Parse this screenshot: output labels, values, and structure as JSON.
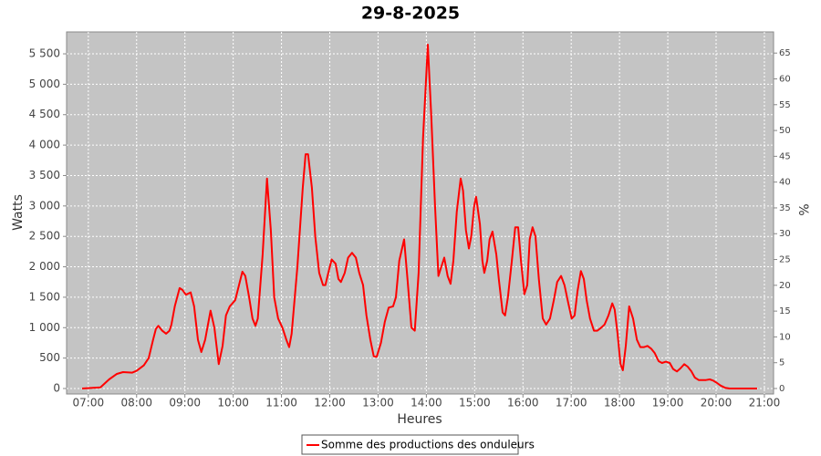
{
  "chart_data": {
    "type": "line",
    "title": "29-8-2025",
    "x_label": "Heures",
    "y_label": "Watts",
    "y2_label": "%",
    "xlim": [
      6.55,
      21.19
    ],
    "xticks": [
      {
        "value": 7,
        "label": "07:00"
      },
      {
        "value": 8,
        "label": "08:00"
      },
      {
        "value": 9,
        "label": "09:00"
      },
      {
        "value": 10,
        "label": "10:00"
      },
      {
        "value": 11,
        "label": "11:00"
      },
      {
        "value": 12,
        "label": "12:00"
      },
      {
        "value": 13,
        "label": "13:00"
      },
      {
        "value": 14,
        "label": "14:00"
      },
      {
        "value": 15,
        "label": "15:00"
      },
      {
        "value": 16,
        "label": "16:00"
      },
      {
        "value": 17,
        "label": "17:00"
      },
      {
        "value": 18,
        "label": "18:00"
      },
      {
        "value": 19,
        "label": "19:00"
      },
      {
        "value": 20,
        "label": "20:00"
      },
      {
        "value": 21,
        "label": "21:00"
      }
    ],
    "ylim": [
      -90,
      5860
    ],
    "yticks": [
      0,
      500,
      {
        "value": 1000,
        "label": "1 000"
      },
      {
        "value": 1500,
        "label": "1 500"
      },
      {
        "value": 2000,
        "label": "2 000"
      },
      {
        "value": 2500,
        "label": "2 500"
      },
      {
        "value": 3000,
        "label": "3 000"
      },
      {
        "value": 3500,
        "label": "3 500"
      },
      {
        "value": 4000,
        "label": "4 000"
      },
      {
        "value": 4500,
        "label": "4 500"
      },
      {
        "value": 5000,
        "label": "5 000"
      },
      {
        "value": 5500,
        "label": "5 500"
      }
    ],
    "y2lim": [
      -1.06,
      69.1
    ],
    "y2ticks": [
      0,
      5,
      10,
      15,
      20,
      25,
      30,
      35,
      40,
      45,
      50,
      55,
      60,
      65
    ],
    "grid": true,
    "legend": "bottom",
    "x": [
      6.87,
      7.25,
      7.43,
      7.59,
      7.72,
      7.91,
      8.0,
      8.15,
      8.25,
      8.34,
      8.4,
      8.45,
      8.53,
      8.61,
      8.68,
      8.72,
      8.79,
      8.89,
      8.95,
      9.02,
      9.12,
      9.19,
      9.27,
      9.34,
      9.42,
      9.53,
      9.61,
      9.7,
      9.78,
      9.85,
      9.93,
      10.04,
      10.12,
      10.19,
      10.25,
      10.33,
      10.4,
      10.46,
      10.51,
      10.61,
      10.7,
      10.78,
      10.85,
      10.93,
      11.02,
      11.1,
      11.16,
      11.21,
      11.33,
      11.44,
      11.5,
      11.55,
      11.63,
      11.7,
      11.78,
      11.86,
      11.91,
      11.97,
      12.04,
      12.12,
      12.18,
      12.23,
      12.31,
      12.38,
      12.46,
      12.54,
      12.61,
      12.69,
      12.76,
      12.84,
      12.91,
      12.97,
      13.06,
      13.14,
      13.22,
      13.31,
      13.37,
      13.44,
      13.54,
      13.61,
      13.69,
      13.76,
      13.84,
      13.93,
      14.03,
      14.1,
      14.18,
      14.25,
      14.31,
      14.37,
      14.44,
      14.5,
      14.56,
      14.63,
      14.71,
      14.76,
      14.82,
      14.88,
      14.93,
      14.99,
      15.03,
      15.11,
      15.16,
      15.2,
      15.26,
      15.31,
      15.37,
      15.45,
      15.5,
      15.58,
      15.63,
      15.69,
      15.77,
      15.84,
      15.9,
      15.96,
      16.03,
      16.09,
      16.14,
      16.2,
      16.26,
      16.33,
      16.41,
      16.48,
      16.56,
      16.64,
      16.71,
      16.79,
      16.86,
      16.94,
      17.01,
      17.07,
      17.13,
      17.2,
      17.26,
      17.32,
      17.39,
      17.47,
      17.54,
      17.62,
      17.69,
      17.77,
      17.85,
      17.9,
      17.96,
      18.02,
      18.07,
      18.13,
      18.2,
      18.28,
      18.36,
      18.43,
      18.51,
      18.58,
      18.66,
      18.73,
      18.81,
      18.88,
      18.96,
      19.04,
      19.11,
      19.19,
      19.26,
      19.34,
      19.41,
      19.49,
      19.56,
      19.64,
      19.72,
      19.79,
      19.87,
      19.94,
      20.02,
      20.09,
      20.19,
      20.28,
      20.85
    ],
    "series": [
      {
        "name": "Somme des productions des onduleurs",
        "color": "#ff0000",
        "values": [
          0,
          20,
          150,
          240,
          270,
          260,
          290,
          380,
          500,
          800,
          980,
          1030,
          950,
          900,
          950,
          1050,
          1350,
          1650,
          1620,
          1540,
          1580,
          1350,
          800,
          600,
          800,
          1280,
          1000,
          400,
          700,
          1200,
          1350,
          1450,
          1700,
          1920,
          1850,
          1500,
          1150,
          1030,
          1150,
          2200,
          3450,
          2600,
          1500,
          1150,
          1000,
          800,
          680,
          900,
          2000,
          3300,
          3850,
          3850,
          3300,
          2500,
          1900,
          1700,
          1700,
          1900,
          2120,
          2050,
          1800,
          1750,
          1900,
          2150,
          2230,
          2150,
          1900,
          1700,
          1200,
          800,
          530,
          520,
          750,
          1100,
          1330,
          1350,
          1500,
          2100,
          2450,
          1800,
          1000,
          950,
          1900,
          4100,
          5650,
          4500,
          3000,
          1850,
          2000,
          2150,
          1850,
          1720,
          2100,
          2900,
          3450,
          3250,
          2600,
          2300,
          2500,
          3000,
          3150,
          2700,
          2100,
          1900,
          2100,
          2450,
          2580,
          2200,
          1800,
          1250,
          1200,
          1500,
          2100,
          2650,
          2650,
          2100,
          1550,
          1700,
          2450,
          2650,
          2500,
          1800,
          1150,
          1050,
          1150,
          1450,
          1750,
          1850,
          1700,
          1400,
          1150,
          1200,
          1600,
          1930,
          1800,
          1450,
          1150,
          950,
          950,
          1000,
          1050,
          1200,
          1400,
          1300,
          900,
          400,
          300,
          700,
          1350,
          1150,
          800,
          680,
          680,
          700,
          650,
          580,
          450,
          420,
          440,
          420,
          320,
          280,
          330,
          400,
          360,
          280,
          180,
          140,
          140,
          140,
          150,
          130,
          90,
          50,
          10,
          0,
          0
        ]
      }
    ]
  }
}
